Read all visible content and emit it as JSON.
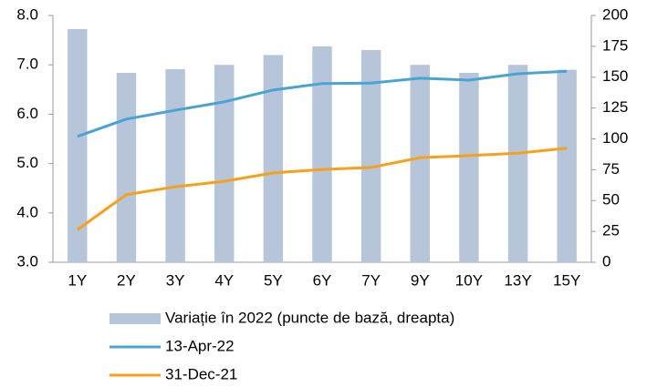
{
  "chart_data": {
    "type": "bar-line",
    "categories": [
      "1Y",
      "2Y",
      "3Y",
      "4Y",
      "5Y",
      "6Y",
      "7Y",
      "9Y",
      "10Y",
      "13Y",
      "15Y"
    ],
    "series": [
      {
        "name": "Variație în 2022 (puncte de bază, dreapta)",
        "type": "bar",
        "axis": "y2",
        "color": "#b7c5da",
        "values": [
          189,
          153.5,
          156.5,
          160,
          168,
          175,
          172,
          160,
          153.5,
          160,
          156
        ]
      },
      {
        "name": "13-Apr-22",
        "type": "line",
        "color": "#4ba3d4",
        "values": [
          5.55,
          5.9,
          6.08,
          6.25,
          6.49,
          6.62,
          6.63,
          6.73,
          6.69,
          6.82,
          6.87
        ]
      },
      {
        "name": "31-Dec-21",
        "type": "line",
        "color": "#f4a11c",
        "values": [
          3.66,
          4.37,
          4.53,
          4.64,
          4.81,
          4.88,
          4.92,
          5.12,
          5.16,
          5.21,
          5.31
        ]
      }
    ],
    "ylim": [
      3,
      8
    ],
    "yticks": [
      {
        "value": 3,
        "label": "3.0"
      },
      {
        "value": 4,
        "label": "4.0"
      },
      {
        "value": 5,
        "label": "5.0"
      },
      {
        "value": 6,
        "label": "6.0"
      },
      {
        "value": 7,
        "label": "7.0"
      },
      {
        "value": 8,
        "label": "8.0"
      }
    ],
    "y2lim": [
      0,
      200
    ],
    "y2ticks": [
      0,
      25,
      50,
      75,
      100,
      125,
      150,
      175,
      200
    ],
    "grid": false,
    "legend": "bottom"
  }
}
